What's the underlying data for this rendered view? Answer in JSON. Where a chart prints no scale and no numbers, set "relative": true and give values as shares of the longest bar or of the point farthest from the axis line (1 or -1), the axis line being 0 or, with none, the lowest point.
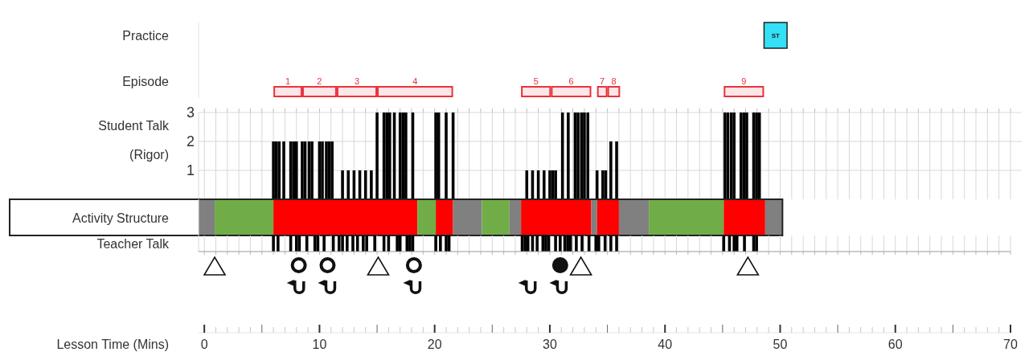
{
  "chart_data": [
    {
      "type": "bar",
      "orientation": "horizontal",
      "categories": [
        "Practice",
        "Episode"
      ],
      "xlim": [
        -0.5,
        70
      ],
      "tick_labels": "y",
      "series": [
        {
          "name": "ST",
          "color": "#33e0f5",
          "base": [
            48.6,
            null
          ],
          "values": [
            2.0,
            null
          ]
        },
        {
          "name": "1",
          "color": "#e8323c",
          "base": [
            null,
            6.0
          ],
          "values": [
            null,
            2.5
          ]
        },
        {
          "name": "2",
          "color": "#e8323c",
          "base": [
            null,
            8.5
          ],
          "values": [
            null,
            3.0
          ]
        },
        {
          "name": "3",
          "color": "#e8323c",
          "base": [
            null,
            11.5
          ],
          "values": [
            null,
            3.5
          ]
        },
        {
          "name": "4",
          "color": "#e8323c",
          "base": [
            null,
            15.0
          ],
          "values": [
            null,
            6.6
          ]
        },
        {
          "name": "5",
          "color": "#e8323c",
          "base": [
            null,
            27.5
          ],
          "values": [
            null,
            2.6
          ]
        },
        {
          "name": "6",
          "color": "#e8323c",
          "base": [
            null,
            30.1
          ],
          "values": [
            null,
            3.5
          ]
        },
        {
          "name": "7",
          "color": "#e8323c",
          "base": [
            null,
            34.1
          ],
          "values": [
            null,
            0.9
          ]
        },
        {
          "name": "8",
          "color": "#e8323c",
          "base": [
            null,
            35.0
          ],
          "values": [
            null,
            1.1
          ]
        },
        {
          "name": "9",
          "color": "#e8323c",
          "base": [
            null,
            45.1
          ],
          "values": [
            null,
            3.5
          ]
        }
      ]
    },
    {
      "type": "bar",
      "ylabel": "Student Talk (Rigor)",
      "xlim": [
        -0.5,
        70
      ],
      "ylim": [
        0,
        3
      ],
      "yticks": [
        1,
        2,
        3
      ],
      "grid": true,
      "tick_labels": "y",
      "color": "#000000",
      "xticks": [
        0,
        {
          "value": 1,
          "label": null
        },
        {
          "value": 2,
          "label": null
        },
        {
          "value": 3,
          "label": null
        },
        {
          "value": 4,
          "label": null
        },
        {
          "value": 5,
          "label": null
        },
        {
          "value": 6,
          "label": null
        },
        {
          "value": 7,
          "label": null
        },
        {
          "value": 8,
          "label": null
        },
        {
          "value": 9,
          "label": null
        },
        10,
        {
          "value": 11,
          "label": null
        },
        {
          "value": 12,
          "label": null
        },
        {
          "value": 13,
          "label": null
        },
        {
          "value": 14,
          "label": null
        },
        {
          "value": 15,
          "label": null
        },
        {
          "value": 16,
          "label": null
        },
        {
          "value": 17,
          "label": null
        },
        {
          "value": 18,
          "label": null
        },
        {
          "value": 19,
          "label": null
        },
        20,
        {
          "value": 21,
          "label": null
        },
        {
          "value": 22,
          "label": null
        },
        {
          "value": 23,
          "label": null
        },
        {
          "value": 24,
          "label": null
        },
        {
          "value": 25,
          "label": null
        },
        {
          "value": 26,
          "label": null
        },
        {
          "value": 27,
          "label": null
        },
        {
          "value": 28,
          "label": null
        },
        {
          "value": 29,
          "label": null
        },
        30,
        {
          "value": 31,
          "label": null
        },
        {
          "value": 32,
          "label": null
        },
        {
          "value": 33,
          "label": null
        },
        {
          "value": 34,
          "label": null
        },
        {
          "value": 35,
          "label": null
        },
        {
          "value": 36,
          "label": null
        },
        {
          "value": 37,
          "label": null
        },
        {
          "value": 38,
          "label": null
        },
        {
          "value": 39,
          "label": null
        },
        40,
        {
          "value": 41,
          "label": null
        },
        {
          "value": 42,
          "label": null
        },
        {
          "value": 43,
          "label": null
        },
        {
          "value": 44,
          "label": null
        },
        {
          "value": 45,
          "label": null
        },
        {
          "value": 46,
          "label": null
        },
        {
          "value": 47,
          "label": null
        },
        {
          "value": 48,
          "label": null
        },
        {
          "value": 49,
          "label": null
        },
        50,
        {
          "value": 51,
          "label": null
        },
        {
          "value": 52,
          "label": null
        },
        {
          "value": 53,
          "label": null
        },
        {
          "value": 54,
          "label": null
        },
        {
          "value": 55,
          "label": null
        },
        {
          "value": 56,
          "label": null
        },
        {
          "value": 57,
          "label": null
        },
        {
          "value": 58,
          "label": null
        },
        {
          "value": 59,
          "label": null
        },
        60,
        {
          "value": 61,
          "label": null
        },
        {
          "value": 62,
          "label": null
        },
        {
          "value": 63,
          "label": null
        },
        {
          "value": 64,
          "label": null
        },
        {
          "value": 65,
          "label": null
        },
        {
          "value": 66,
          "label": null
        },
        {
          "value": 67,
          "label": null
        },
        {
          "value": 68,
          "label": null
        },
        {
          "value": 69,
          "label": null
        },
        70
      ],
      "x": [
        6.0,
        6.25,
        6.5,
        6.9,
        7.5,
        7.75,
        8.0,
        8.5,
        8.75,
        9.1,
        9.35,
        10.0,
        10.25,
        10.6,
        10.85,
        11.1,
        12.0,
        12.5,
        13.0,
        13.5,
        14.0,
        14.5,
        15.0,
        15.6,
        15.85,
        16.1,
        16.5,
        17.0,
        17.25,
        17.5,
        18.1,
        20.1,
        20.35,
        21.0,
        21.6,
        28.0,
        28.5,
        29.0,
        29.5,
        30.0,
        30.25,
        30.5,
        31.1,
        31.6,
        32.2,
        32.45,
        32.75,
        33.0,
        33.3,
        34.1,
        34.6,
        34.85,
        35.3,
        35.8,
        45.2,
        45.45,
        45.75,
        46.0,
        46.6,
        46.85,
        47.1,
        47.7,
        47.95,
        48.2
      ],
      "values": [
        2,
        2,
        2,
        2,
        2,
        2,
        2,
        2,
        2,
        2,
        2,
        2,
        2,
        2,
        2,
        2,
        1,
        1,
        1,
        1,
        1,
        1,
        3,
        3,
        3,
        3,
        3,
        3,
        3,
        3,
        3,
        3,
        3,
        3,
        3,
        1,
        1,
        1,
        1,
        1,
        1,
        1,
        3,
        3,
        3,
        3,
        3,
        3,
        3,
        1,
        1,
        1,
        2,
        2,
        3,
        3,
        3,
        3,
        3,
        3,
        3,
        3,
        3,
        3
      ]
    },
    {
      "type": "bar",
      "orientation": "horizontal",
      "categories": [
        "Activity Structure"
      ],
      "xlim": [
        -0.5,
        70
      ],
      "tick_labels": "y",
      "series": [
        {
          "color": "#808080",
          "base": [
            -0.5
          ],
          "values": [
            1.4
          ]
        },
        {
          "color": "#70ad47",
          "base": [
            0.9
          ],
          "values": [
            5.1
          ]
        },
        {
          "color": "#ff0000",
          "base": [
            6.0
          ],
          "values": [
            12.5
          ]
        },
        {
          "color": "#70ad47",
          "base": [
            18.5
          ],
          "values": [
            1.6
          ]
        },
        {
          "color": "#ff0000",
          "base": [
            20.1
          ],
          "values": [
            1.5
          ]
        },
        {
          "color": "#808080",
          "base": [
            21.6
          ],
          "values": [
            2.5
          ]
        },
        {
          "color": "#70ad47",
          "base": [
            24.1
          ],
          "values": [
            2.4
          ]
        },
        {
          "color": "#808080",
          "base": [
            26.5
          ],
          "values": [
            1.0
          ]
        },
        {
          "color": "#ff0000",
          "base": [
            27.5
          ],
          "values": [
            6.1
          ]
        },
        {
          "color": "#808080",
          "base": [
            33.6
          ],
          "values": [
            0.5
          ]
        },
        {
          "color": "#ff0000",
          "base": [
            34.1
          ],
          "values": [
            1.9
          ]
        },
        {
          "color": "#808080",
          "base": [
            36.0
          ],
          "values": [
            2.6
          ]
        },
        {
          "color": "#70ad47",
          "base": [
            38.6
          ],
          "values": [
            6.5
          ]
        },
        {
          "color": "#ff0000",
          "base": [
            45.1
          ],
          "values": [
            3.6
          ]
        },
        {
          "color": "#808080",
          "base": [
            48.7
          ],
          "values": [
            1.5
          ]
        }
      ]
    },
    {
      "type": "bar",
      "title": "Teacher Talk",
      "xlabel": "Lesson Time (Mins)",
      "relative": true,
      "xlim": [
        -0.5,
        70
      ],
      "grid": "x",
      "tick_labels": "x",
      "color": "#000000",
      "xticks": [
        0,
        {
          "value": 1,
          "label": null
        },
        {
          "value": 2,
          "label": null
        },
        {
          "value": 3,
          "label": null
        },
        {
          "value": 4,
          "label": null
        },
        {
          "value": 5,
          "label": null
        },
        {
          "value": 6,
          "label": null
        },
        {
          "value": 7,
          "label": null
        },
        {
          "value": 8,
          "label": null
        },
        {
          "value": 9,
          "label": null
        },
        10,
        {
          "value": 11,
          "label": null
        },
        {
          "value": 12,
          "label": null
        },
        {
          "value": 13,
          "label": null
        },
        {
          "value": 14,
          "label": null
        },
        {
          "value": 15,
          "label": null
        },
        {
          "value": 16,
          "label": null
        },
        {
          "value": 17,
          "label": null
        },
        {
          "value": 18,
          "label": null
        },
        {
          "value": 19,
          "label": null
        },
        20,
        {
          "value": 21,
          "label": null
        },
        {
          "value": 22,
          "label": null
        },
        {
          "value": 23,
          "label": null
        },
        {
          "value": 24,
          "label": null
        },
        {
          "value": 25,
          "label": null
        },
        {
          "value": 26,
          "label": null
        },
        {
          "value": 27,
          "label": null
        },
        {
          "value": 28,
          "label": null
        },
        {
          "value": 29,
          "label": null
        },
        30,
        {
          "value": 31,
          "label": null
        },
        {
          "value": 32,
          "label": null
        },
        {
          "value": 33,
          "label": null
        },
        {
          "value": 34,
          "label": null
        },
        {
          "value": 35,
          "label": null
        },
        {
          "value": 36,
          "label": null
        },
        {
          "value": 37,
          "label": null
        },
        {
          "value": 38,
          "label": null
        },
        {
          "value": 39,
          "label": null
        },
        40,
        {
          "value": 41,
          "label": null
        },
        {
          "value": 42,
          "label": null
        },
        {
          "value": 43,
          "label": null
        },
        {
          "value": 44,
          "label": null
        },
        {
          "value": 45,
          "label": null
        },
        {
          "value": 46,
          "label": null
        },
        {
          "value": 47,
          "label": null
        },
        {
          "value": 48,
          "label": null
        },
        {
          "value": 49,
          "label": null
        },
        50,
        {
          "value": 51,
          "label": null
        },
        {
          "value": 52,
          "label": null
        },
        {
          "value": 53,
          "label": null
        },
        {
          "value": 54,
          "label": null
        },
        {
          "value": 55,
          "label": null
        },
        {
          "value": 56,
          "label": null
        },
        {
          "value": 57,
          "label": null
        },
        {
          "value": 58,
          "label": null
        },
        {
          "value": 59,
          "label": null
        },
        60,
        {
          "value": 61,
          "label": null
        },
        {
          "value": 62,
          "label": null
        },
        {
          "value": 63,
          "label": null
        },
        {
          "value": 64,
          "label": null
        },
        {
          "value": 65,
          "label": null
        },
        {
          "value": 66,
          "label": null
        },
        {
          "value": 67,
          "label": null
        },
        {
          "value": 68,
          "label": null
        },
        {
          "value": 69,
          "label": null
        },
        70
      ],
      "x": [
        6.0,
        6.4,
        7.5,
        8.0,
        8.25,
        8.9,
        9.6,
        9.85,
        10.4,
        11.2,
        11.7,
        12.0,
        12.4,
        12.9,
        13.3,
        13.8,
        14.1,
        14.8,
        15.6,
        16.0,
        16.75,
        17.0,
        17.6,
        17.85,
        18.1,
        20.1,
        20.5,
        21.0,
        21.25,
        27.6,
        27.85,
        28.1,
        28.5,
        28.9,
        29.4,
        29.65,
        29.9,
        30.5,
        30.9,
        31.3,
        31.55,
        31.8,
        32.3,
        32.8,
        33.4,
        34.0,
        34.25,
        34.8,
        35.3,
        35.8,
        45.1,
        45.6,
        46.0,
        46.25,
        46.9,
        47.7,
        47.95
      ],
      "values": [
        1,
        1,
        1,
        1,
        1,
        1,
        1,
        1,
        1,
        1,
        1,
        1,
        1,
        1,
        1,
        1,
        1,
        1,
        1,
        1,
        1,
        1,
        1,
        1,
        1,
        1,
        1,
        1,
        1,
        1,
        1,
        1,
        1,
        1,
        1,
        1,
        1,
        1,
        1,
        1,
        1,
        1,
        1,
        1,
        1,
        1,
        1,
        1,
        1,
        1,
        1,
        1,
        1,
        1,
        1,
        1,
        1
      ]
    }
  ]
}
